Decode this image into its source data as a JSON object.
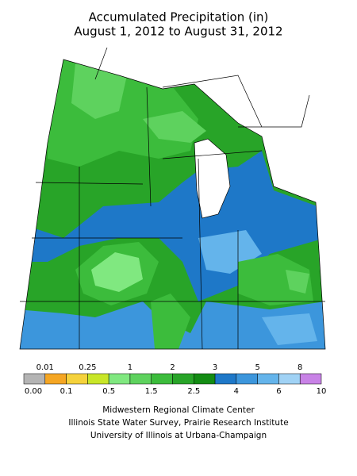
{
  "title": [
    "Accumulated Precipitation (in)",
    "August 1, 2012 to August 31, 2012"
  ],
  "legend": {
    "boundaries": [
      "0.00",
      "0.01",
      "0.1",
      "0.25",
      "0.5",
      "1",
      "1.5",
      "2",
      "2.5",
      "3",
      "4",
      "5",
      "6",
      "8",
      "10"
    ],
    "colors": [
      "#b4b4b4",
      "#f5a623",
      "#f5d23c",
      "#c8e628",
      "#80e880",
      "#5ed25e",
      "#3cbc3c",
      "#28a428",
      "#138c13",
      "#1e78c8",
      "#3c96dc",
      "#64b4eb",
      "#a0d2f5",
      "#c882e6"
    ]
  },
  "credits": [
    "Midwestern Regional Climate Center",
    "Illinois State Water Survey, Prairie Research Institute",
    "University of Illinois at Urbana-Champaign"
  ]
}
